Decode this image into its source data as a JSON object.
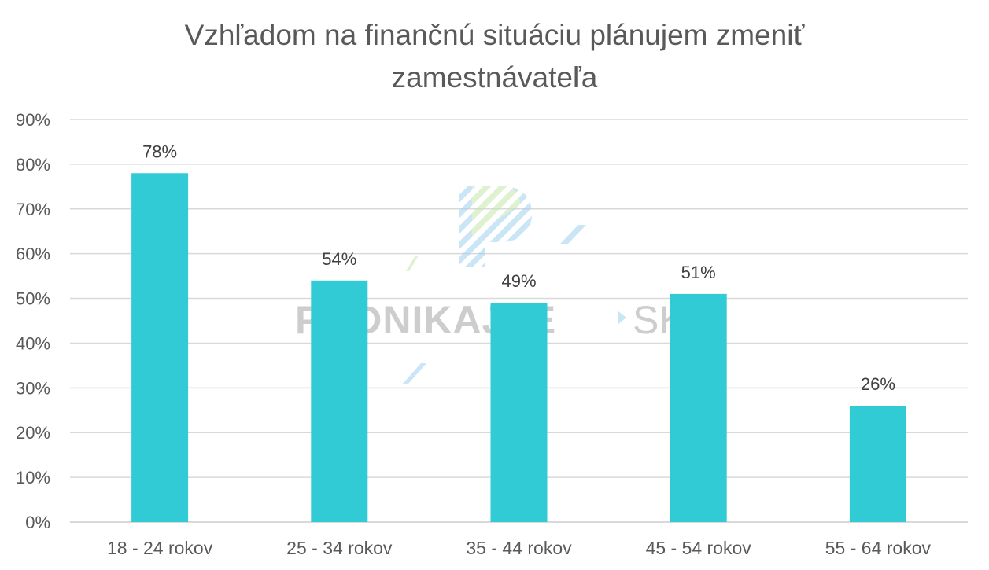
{
  "chart_data": {
    "type": "bar",
    "title": "Vzhľadom na finančnú situáciu plánujem zmeniť zamestnávateľa",
    "title_lines": [
      "Vzhľadom na finančnú situáciu plánujem zmeniť",
      "zamestnávateľa"
    ],
    "categories": [
      "18 - 24 rokov",
      "25 - 34 rokov",
      "35 - 44 rokov",
      "45 - 54 rokov",
      "55 - 64 rokov"
    ],
    "values": [
      78,
      54,
      49,
      51,
      26
    ],
    "data_labels": [
      "78%",
      "54%",
      "49%",
      "51%",
      "26%"
    ],
    "ylim": [
      0,
      90
    ],
    "y_ticks": [
      0,
      10,
      20,
      30,
      40,
      50,
      60,
      70,
      80,
      90
    ],
    "y_tick_labels": [
      "0%",
      "10%",
      "20%",
      "30%",
      "40%",
      "50%",
      "60%",
      "70%",
      "80%",
      "90%"
    ],
    "xlabel": "",
    "ylabel": "",
    "grid": true,
    "legend": "none",
    "bar_color": "#31CBD6",
    "grid_color": "#D9D9D9"
  },
  "watermark": {
    "brand": "PODNIKAJTE",
    "suffix": "SK"
  }
}
